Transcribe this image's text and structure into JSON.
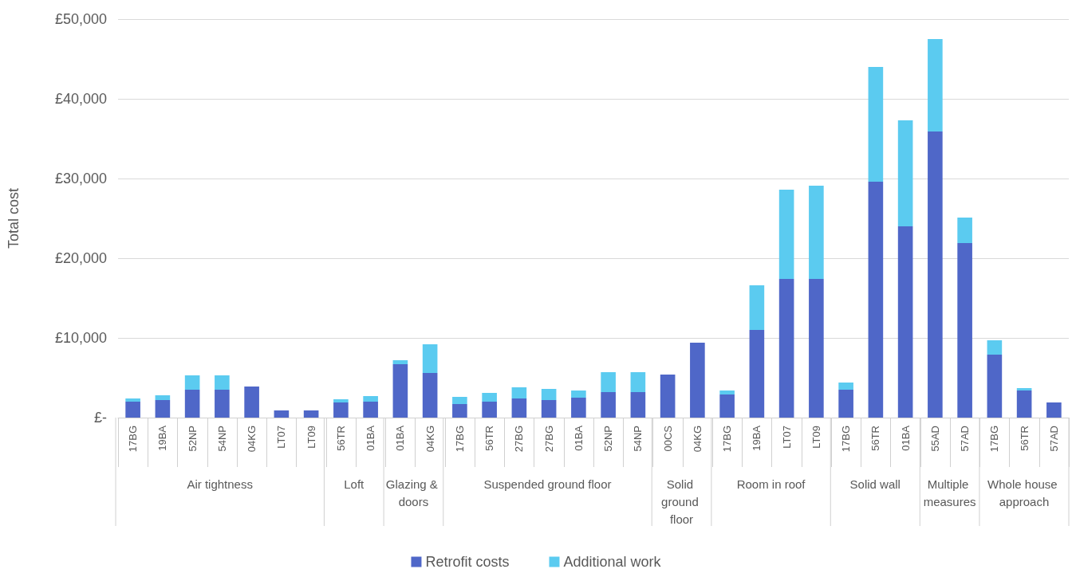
{
  "chart_data": {
    "type": "bar",
    "stacked": true,
    "ylabel": "Total cost",
    "categories": [
      "17BG",
      "19BA",
      "52NP",
      "54NP",
      "04KG",
      "LT07",
      "LT09",
      "56TR",
      "01BA",
      "01BA",
      "04KG",
      "17BG",
      "56TR",
      "27BG",
      "27BG",
      "01BA",
      "52NP",
      "54NP",
      "00CS",
      "04KG",
      "17BG",
      "19BA",
      "LT07",
      "LT09",
      "17BG",
      "56TR",
      "01BA",
      "55AD",
      "57AD",
      "17BG",
      "56TR",
      "57AD"
    ],
    "series": [
      {
        "name": "Retrofit costs",
        "color": "#4f67c8",
        "values": [
          2000,
          2200,
          3500,
          3500,
          3900,
          900,
          900,
          1900,
          2000,
          6700,
          5600,
          1700,
          2000,
          2400,
          2200,
          2500,
          3200,
          3200,
          5400,
          9400,
          2900,
          11000,
          17400,
          17400,
          3500,
          29600,
          24000,
          35900,
          21900,
          7900,
          3400,
          1900
        ]
      },
      {
        "name": "Additional work",
        "color": "#5bcbf0",
        "values": [
          400,
          600,
          1800,
          1800,
          null,
          null,
          null,
          400,
          700,
          500,
          3600,
          900,
          1100,
          1400,
          1400,
          900,
          2500,
          2500,
          null,
          null,
          500,
          5600,
          11200,
          11700,
          900,
          14400,
          13300,
          11600,
          3200,
          1800,
          300,
          null
        ]
      }
    ],
    "ylim": [
      0,
      50000
    ],
    "yticks": [
      {
        "value": 0,
        "label": "£-"
      },
      {
        "value": 10000,
        "label": "£10,000"
      },
      {
        "value": 20000,
        "label": "£20,000"
      },
      {
        "value": 30000,
        "label": "£30,000"
      },
      {
        "value": 40000,
        "label": "£40,000"
      },
      {
        "value": 50000,
        "label": "£50,000"
      }
    ],
    "grid": "y",
    "legend": "bottom",
    "annotations": [
      "Air tightness",
      "Loft",
      "Glazing & doors",
      "Suspended ground floor",
      "Solid ground floor",
      "Room in roof",
      "Solid wall",
      "Multiple measures",
      "Whole house approach"
    ]
  }
}
